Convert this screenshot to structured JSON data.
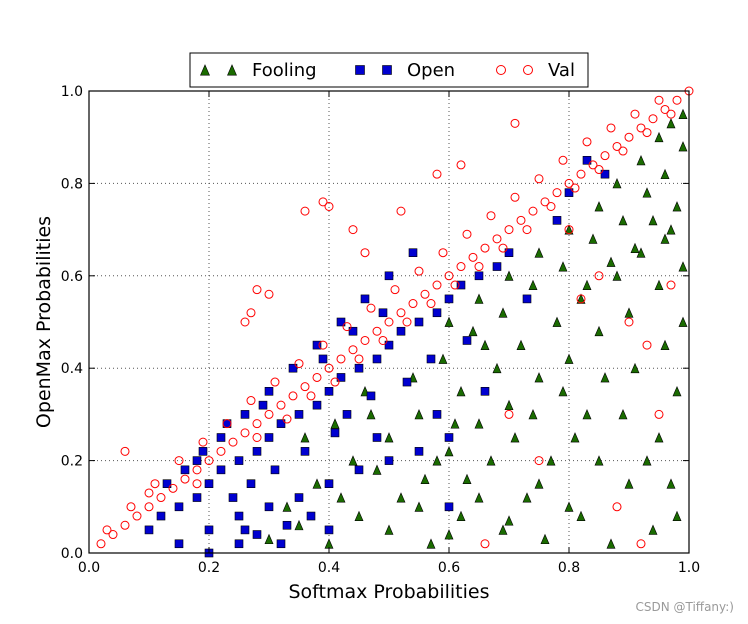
{
  "chart_data": {
    "type": "scatter",
    "title": "",
    "xlabel": "Softmax Probabilities",
    "ylabel": "OpenMax Probabilities",
    "xlim": [
      0.0,
      1.0
    ],
    "ylim": [
      0.0,
      1.0
    ],
    "xticks": [
      "0.0",
      "0.2",
      "0.4",
      "0.6",
      "0.8",
      "1.0"
    ],
    "yticks": [
      "0.0",
      "0.2",
      "0.4",
      "0.6",
      "0.8",
      "1.0"
    ],
    "grid": true,
    "legend_position": "top-center",
    "series": [
      {
        "name": "Fooling",
        "marker": "triangle",
        "color": "#1a6b00",
        "points": [
          [
            0.3,
            0.03
          ],
          [
            0.35,
            0.06
          ],
          [
            0.4,
            0.02
          ],
          [
            0.45,
            0.08
          ],
          [
            0.5,
            0.05
          ],
          [
            0.55,
            0.1
          ],
          [
            0.6,
            0.04
          ],
          [
            0.65,
            0.12
          ],
          [
            0.7,
            0.07
          ],
          [
            0.75,
            0.15
          ],
          [
            0.8,
            0.1
          ],
          [
            0.85,
            0.2
          ],
          [
            0.9,
            0.15
          ],
          [
            0.95,
            0.25
          ],
          [
            0.98,
            0.08
          ],
          [
            0.5,
            0.25
          ],
          [
            0.55,
            0.3
          ],
          [
            0.6,
            0.22
          ],
          [
            0.62,
            0.35
          ],
          [
            0.65,
            0.28
          ],
          [
            0.68,
            0.4
          ],
          [
            0.7,
            0.32
          ],
          [
            0.72,
            0.45
          ],
          [
            0.75,
            0.38
          ],
          [
            0.78,
            0.5
          ],
          [
            0.8,
            0.42
          ],
          [
            0.82,
            0.55
          ],
          [
            0.85,
            0.48
          ],
          [
            0.88,
            0.6
          ],
          [
            0.9,
            0.52
          ],
          [
            0.92,
            0.65
          ],
          [
            0.95,
            0.58
          ],
          [
            0.97,
            0.7
          ],
          [
            0.99,
            0.62
          ],
          [
            0.6,
            0.5
          ],
          [
            0.65,
            0.55
          ],
          [
            0.7,
            0.6
          ],
          [
            0.75,
            0.65
          ],
          [
            0.8,
            0.7
          ],
          [
            0.85,
            0.75
          ],
          [
            0.88,
            0.8
          ],
          [
            0.92,
            0.85
          ],
          [
            0.95,
            0.9
          ],
          [
            0.97,
            0.93
          ],
          [
            0.99,
            0.95
          ],
          [
            0.46,
            0.35
          ],
          [
            0.48,
            0.18
          ],
          [
            0.52,
            0.12
          ],
          [
            0.58,
            0.2
          ],
          [
            0.63,
            0.16
          ],
          [
            0.66,
            0.45
          ],
          [
            0.71,
            0.25
          ],
          [
            0.74,
            0.3
          ],
          [
            0.77,
            0.2
          ],
          [
            0.79,
            0.35
          ],
          [
            0.83,
            0.3
          ],
          [
            0.86,
            0.38
          ],
          [
            0.89,
            0.3
          ],
          [
            0.91,
            0.4
          ],
          [
            0.93,
            0.2
          ],
          [
            0.96,
            0.45
          ],
          [
            0.98,
            0.35
          ],
          [
            0.99,
            0.5
          ],
          [
            0.97,
            0.15
          ],
          [
            0.94,
            0.05
          ],
          [
            0.87,
            0.02
          ],
          [
            0.82,
            0.08
          ],
          [
            0.76,
            0.03
          ],
          [
            0.69,
            0.05
          ],
          [
            0.62,
            0.08
          ],
          [
            0.57,
            0.02
          ],
          [
            0.42,
            0.12
          ],
          [
            0.44,
            0.2
          ],
          [
            0.38,
            0.15
          ],
          [
            0.33,
            0.1
          ],
          [
            0.36,
            0.25
          ],
          [
            0.41,
            0.28
          ],
          [
            0.47,
            0.3
          ],
          [
            0.54,
            0.38
          ],
          [
            0.59,
            0.42
          ],
          [
            0.64,
            0.48
          ],
          [
            0.69,
            0.52
          ],
          [
            0.74,
            0.58
          ],
          [
            0.79,
            0.62
          ],
          [
            0.84,
            0.68
          ],
          [
            0.89,
            0.72
          ],
          [
            0.93,
            0.78
          ],
          [
            0.96,
            0.82
          ],
          [
            0.99,
            0.88
          ],
          [
            0.98,
            0.75
          ],
          [
            0.96,
            0.68
          ],
          [
            0.94,
            0.72
          ],
          [
            0.91,
            0.66
          ],
          [
            0.87,
            0.63
          ],
          [
            0.83,
            0.58
          ],
          [
            0.81,
            0.25
          ],
          [
            0.73,
            0.12
          ],
          [
            0.67,
            0.2
          ],
          [
            0.61,
            0.28
          ],
          [
            0.56,
            0.16
          ]
        ]
      },
      {
        "name": "Open",
        "marker": "square",
        "color": "#0000d0",
        "points": [
          [
            0.1,
            0.05
          ],
          [
            0.12,
            0.08
          ],
          [
            0.15,
            0.1
          ],
          [
            0.18,
            0.12
          ],
          [
            0.2,
            0.15
          ],
          [
            0.22,
            0.18
          ],
          [
            0.25,
            0.2
          ],
          [
            0.28,
            0.22
          ],
          [
            0.3,
            0.25
          ],
          [
            0.32,
            0.28
          ],
          [
            0.35,
            0.3
          ],
          [
            0.38,
            0.32
          ],
          [
            0.4,
            0.35
          ],
          [
            0.42,
            0.38
          ],
          [
            0.45,
            0.4
          ],
          [
            0.48,
            0.42
          ],
          [
            0.5,
            0.45
          ],
          [
            0.52,
            0.48
          ],
          [
            0.55,
            0.5
          ],
          [
            0.58,
            0.52
          ],
          [
            0.6,
            0.55
          ],
          [
            0.62,
            0.58
          ],
          [
            0.65,
            0.6
          ],
          [
            0.68,
            0.62
          ],
          [
            0.7,
            0.65
          ],
          [
            0.15,
            0.02
          ],
          [
            0.2,
            0.05
          ],
          [
            0.25,
            0.08
          ],
          [
            0.3,
            0.1
          ],
          [
            0.35,
            0.12
          ],
          [
            0.4,
            0.15
          ],
          [
            0.45,
            0.18
          ],
          [
            0.5,
            0.2
          ],
          [
            0.55,
            0.22
          ],
          [
            0.6,
            0.25
          ],
          [
            0.18,
            0.2
          ],
          [
            0.22,
            0.25
          ],
          [
            0.26,
            0.3
          ],
          [
            0.3,
            0.35
          ],
          [
            0.34,
            0.4
          ],
          [
            0.38,
            0.45
          ],
          [
            0.42,
            0.5
          ],
          [
            0.46,
            0.55
          ],
          [
            0.5,
            0.6
          ],
          [
            0.54,
            0.65
          ],
          [
            0.2,
            0.0
          ],
          [
            0.25,
            0.02
          ],
          [
            0.28,
            0.04
          ],
          [
            0.33,
            0.06
          ],
          [
            0.37,
            0.08
          ],
          [
            0.24,
            0.12
          ],
          [
            0.27,
            0.15
          ],
          [
            0.31,
            0.18
          ],
          [
            0.36,
            0.22
          ],
          [
            0.41,
            0.26
          ],
          [
            0.43,
            0.3
          ],
          [
            0.47,
            0.34
          ],
          [
            0.53,
            0.37
          ],
          [
            0.57,
            0.42
          ],
          [
            0.63,
            0.46
          ],
          [
            0.73,
            0.55
          ],
          [
            0.78,
            0.72
          ],
          [
            0.8,
            0.78
          ],
          [
            0.83,
            0.85
          ],
          [
            0.86,
            0.82
          ],
          [
            0.13,
            0.15
          ],
          [
            0.16,
            0.18
          ],
          [
            0.19,
            0.22
          ],
          [
            0.23,
            0.28
          ],
          [
            0.29,
            0.32
          ],
          [
            0.39,
            0.42
          ],
          [
            0.44,
            0.48
          ],
          [
            0.49,
            0.52
          ],
          [
            0.26,
            0.05
          ],
          [
            0.32,
            0.02
          ],
          [
            0.4,
            0.05
          ],
          [
            0.48,
            0.25
          ],
          [
            0.58,
            0.3
          ],
          [
            0.66,
            0.35
          ],
          [
            0.6,
            0.1
          ]
        ]
      },
      {
        "name": "Val",
        "marker": "circle-open",
        "color": "#ff0000",
        "points": [
          [
            0.02,
            0.02
          ],
          [
            0.04,
            0.04
          ],
          [
            0.06,
            0.06
          ],
          [
            0.08,
            0.08
          ],
          [
            0.1,
            0.1
          ],
          [
            0.12,
            0.12
          ],
          [
            0.14,
            0.14
          ],
          [
            0.16,
            0.16
          ],
          [
            0.18,
            0.18
          ],
          [
            0.2,
            0.2
          ],
          [
            0.22,
            0.22
          ],
          [
            0.24,
            0.24
          ],
          [
            0.26,
            0.26
          ],
          [
            0.28,
            0.28
          ],
          [
            0.3,
            0.3
          ],
          [
            0.32,
            0.32
          ],
          [
            0.34,
            0.34
          ],
          [
            0.36,
            0.36
          ],
          [
            0.38,
            0.38
          ],
          [
            0.4,
            0.4
          ],
          [
            0.42,
            0.42
          ],
          [
            0.44,
            0.44
          ],
          [
            0.46,
            0.46
          ],
          [
            0.48,
            0.48
          ],
          [
            0.5,
            0.5
          ],
          [
            0.52,
            0.52
          ],
          [
            0.54,
            0.54
          ],
          [
            0.56,
            0.56
          ],
          [
            0.58,
            0.58
          ],
          [
            0.6,
            0.6
          ],
          [
            0.62,
            0.62
          ],
          [
            0.64,
            0.64
          ],
          [
            0.66,
            0.66
          ],
          [
            0.68,
            0.68
          ],
          [
            0.7,
            0.7
          ],
          [
            0.72,
            0.72
          ],
          [
            0.74,
            0.74
          ],
          [
            0.76,
            0.76
          ],
          [
            0.78,
            0.78
          ],
          [
            0.8,
            0.8
          ],
          [
            0.82,
            0.82
          ],
          [
            0.84,
            0.84
          ],
          [
            0.86,
            0.86
          ],
          [
            0.88,
            0.88
          ],
          [
            0.9,
            0.9
          ],
          [
            0.92,
            0.92
          ],
          [
            0.94,
            0.94
          ],
          [
            0.96,
            0.96
          ],
          [
            0.98,
            0.98
          ],
          [
            1.0,
            1.0
          ],
          [
            0.03,
            0.05
          ],
          [
            0.07,
            0.1
          ],
          [
            0.11,
            0.15
          ],
          [
            0.15,
            0.2
          ],
          [
            0.19,
            0.24
          ],
          [
            0.23,
            0.28
          ],
          [
            0.27,
            0.33
          ],
          [
            0.31,
            0.37
          ],
          [
            0.35,
            0.41
          ],
          [
            0.39,
            0.45
          ],
          [
            0.43,
            0.49
          ],
          [
            0.47,
            0.53
          ],
          [
            0.51,
            0.57
          ],
          [
            0.55,
            0.61
          ],
          [
            0.59,
            0.65
          ],
          [
            0.63,
            0.69
          ],
          [
            0.67,
            0.73
          ],
          [
            0.71,
            0.77
          ],
          [
            0.75,
            0.81
          ],
          [
            0.79,
            0.85
          ],
          [
            0.83,
            0.89
          ],
          [
            0.87,
            0.92
          ],
          [
            0.91,
            0.95
          ],
          [
            0.95,
            0.98
          ],
          [
            0.06,
            0.22
          ],
          [
            0.1,
            0.13
          ],
          [
            0.18,
            0.15
          ],
          [
            0.28,
            0.25
          ],
          [
            0.33,
            0.29
          ],
          [
            0.37,
            0.34
          ],
          [
            0.41,
            0.37
          ],
          [
            0.45,
            0.42
          ],
          [
            0.49,
            0.46
          ],
          [
            0.53,
            0.5
          ],
          [
            0.57,
            0.54
          ],
          [
            0.61,
            0.58
          ],
          [
            0.65,
            0.62
          ],
          [
            0.69,
            0.66
          ],
          [
            0.73,
            0.7
          ],
          [
            0.77,
            0.75
          ],
          [
            0.81,
            0.79
          ],
          [
            0.85,
            0.83
          ],
          [
            0.89,
            0.87
          ],
          [
            0.93,
            0.91
          ],
          [
            0.97,
            0.95
          ],
          [
            0.39,
            0.76
          ],
          [
            0.4,
            0.75
          ],
          [
            0.36,
            0.74
          ],
          [
            0.71,
            0.93
          ],
          [
            0.26,
            0.5
          ],
          [
            0.27,
            0.52
          ],
          [
            0.28,
            0.57
          ],
          [
            0.3,
            0.56
          ],
          [
            0.52,
            0.74
          ],
          [
            0.58,
            0.82
          ],
          [
            0.62,
            0.84
          ],
          [
            0.46,
            0.65
          ],
          [
            0.44,
            0.7
          ],
          [
            0.8,
            0.7
          ],
          [
            0.82,
            0.55
          ],
          [
            0.85,
            0.6
          ],
          [
            0.9,
            0.5
          ],
          [
            0.93,
            0.45
          ],
          [
            0.95,
            0.3
          ],
          [
            0.7,
            0.3
          ],
          [
            0.75,
            0.2
          ],
          [
            0.66,
            0.02
          ],
          [
            0.88,
            0.1
          ],
          [
            0.92,
            0.02
          ],
          [
            0.97,
            0.58
          ]
        ]
      }
    ]
  },
  "watermark": "CSDN @Tiffany:)",
  "style": {
    "axes_color": "#000000",
    "grid_color": "#555555",
    "background": "#ffffff"
  }
}
